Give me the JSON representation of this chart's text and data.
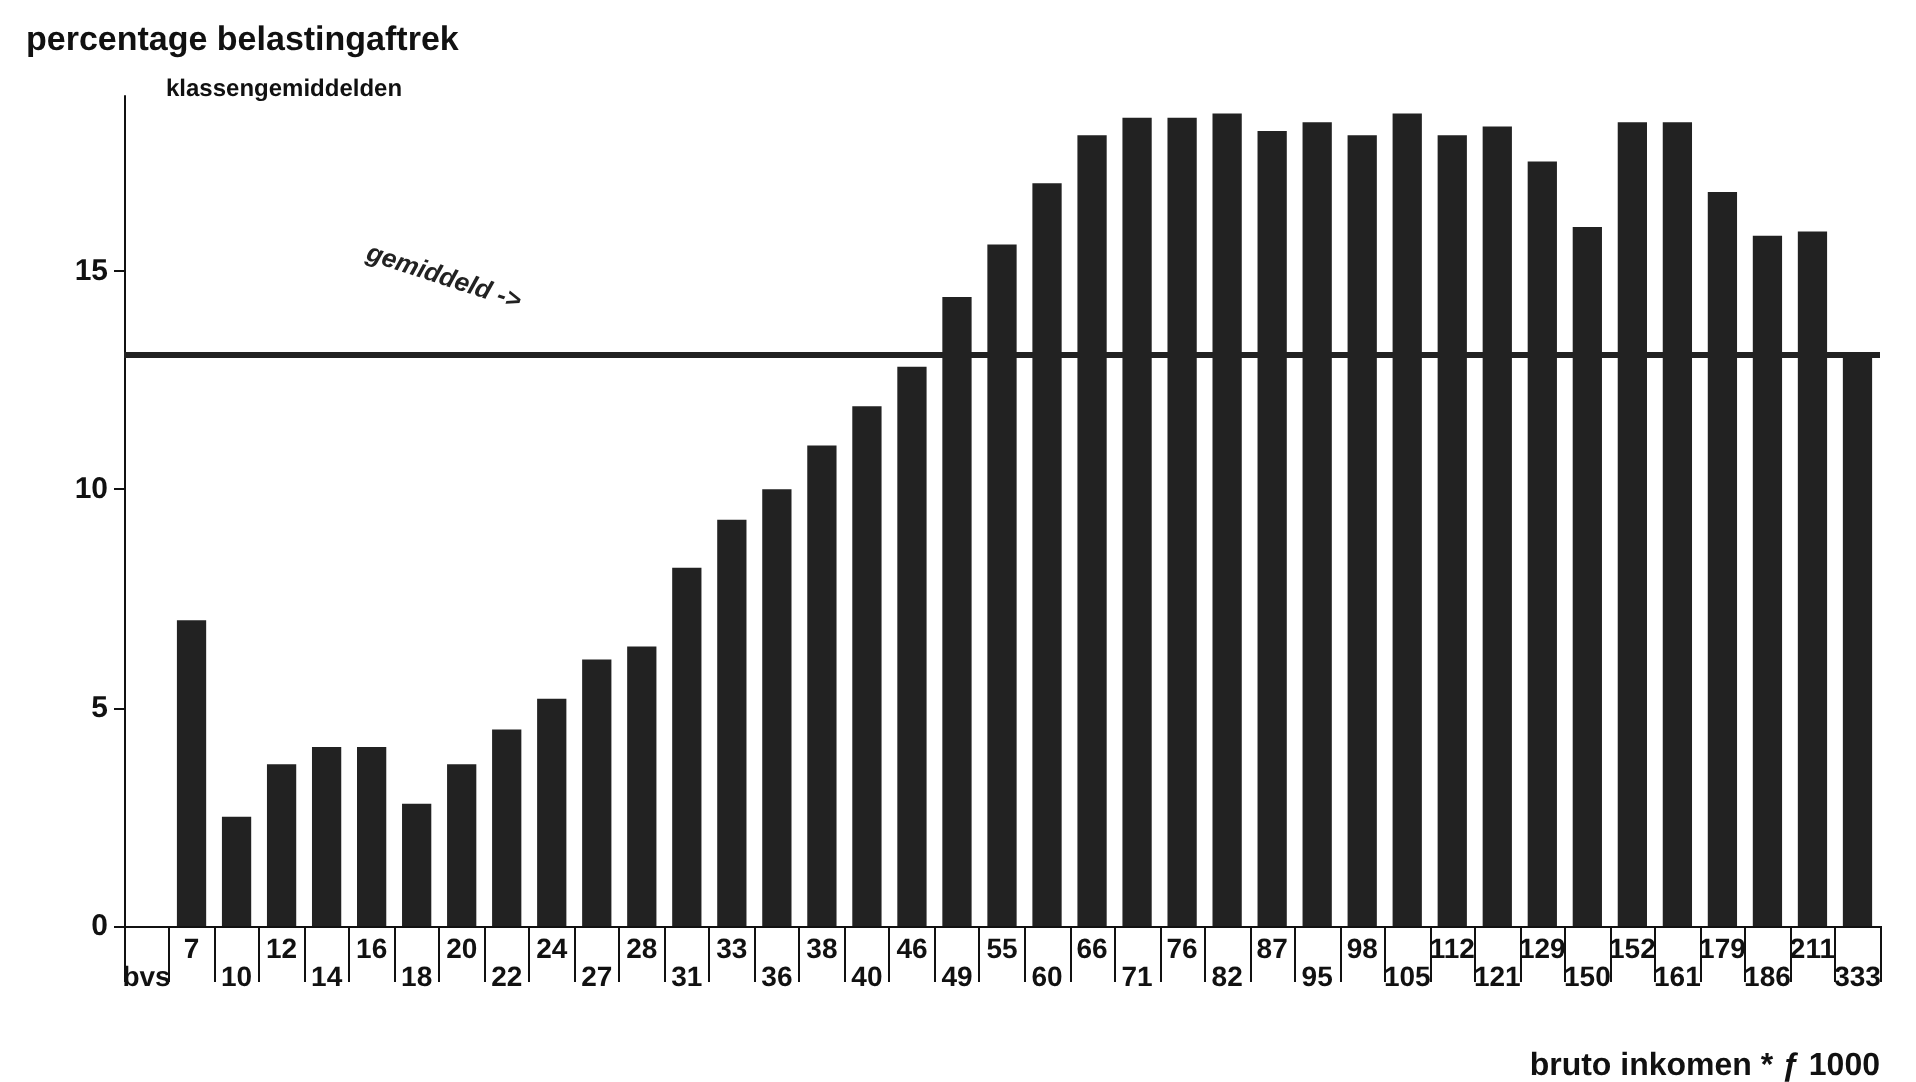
{
  "chart_data": {
    "type": "bar",
    "title": "percentage belastingaftrek",
    "subtitle": "klassengemiddelden",
    "xlabel": "bruto inkomen * ƒ 1000",
    "categories": [
      "bvs",
      "7",
      "10",
      "12",
      "14",
      "16",
      "18",
      "20",
      "22",
      "24",
      "27",
      "28",
      "31",
      "33",
      "36",
      "38",
      "40",
      "46",
      "49",
      "55",
      "60",
      "66",
      "71",
      "76",
      "82",
      "87",
      "95",
      "98",
      "105",
      "112",
      "121",
      "129",
      "150",
      "152",
      "161",
      "179",
      "186",
      "211",
      "333"
    ],
    "values": [
      null,
      7.0,
      2.5,
      3.7,
      4.1,
      4.1,
      2.8,
      3.7,
      4.5,
      5.2,
      6.1,
      6.4,
      8.2,
      9.3,
      10.0,
      11.0,
      11.9,
      12.8,
      14.4,
      15.6,
      17.0,
      18.1,
      18.5,
      18.5,
      18.6,
      18.2,
      18.4,
      18.1,
      18.6,
      18.1,
      18.3,
      17.5,
      16.0,
      18.4,
      18.4,
      16.8,
      15.8,
      15.9,
      13.1
    ],
    "color": "#222222",
    "ylim": [
      0,
      19
    ],
    "yticks": [
      0,
      5,
      10,
      15
    ],
    "ref_lines": [
      {
        "axis": "y",
        "value": 13.1,
        "label": "gemiddeld ->",
        "color": "#222222"
      }
    ],
    "grid": false
  }
}
